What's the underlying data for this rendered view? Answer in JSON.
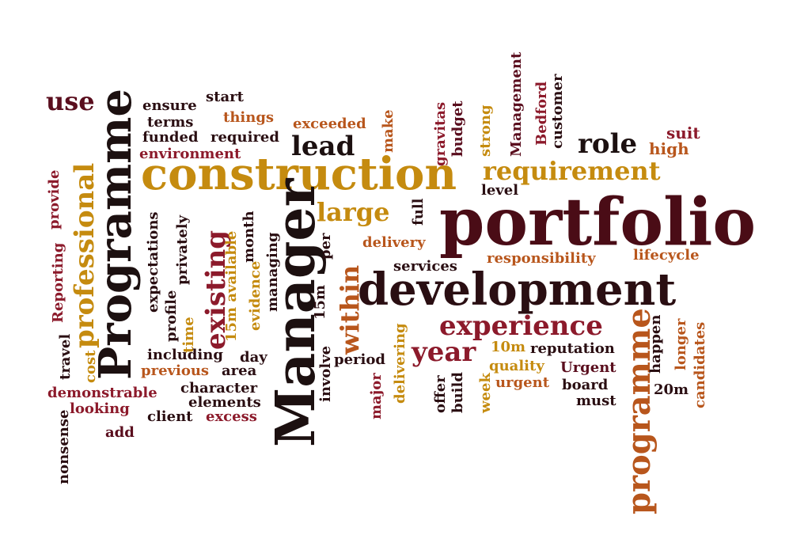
{
  "palette": {
    "dark_maroon": "#3d0a10",
    "maroon": "#5a0e1e",
    "red": "#8c1a2b",
    "orange": "#b8561c",
    "gold": "#c58b0f",
    "black": "#1c1010"
  },
  "words": [
    {
      "text": "portfolio",
      "color": "#4a0c16",
      "vertical": false
    },
    {
      "text": "construction",
      "color": "#c58b0f",
      "vertical": false
    },
    {
      "text": "development",
      "color": "#2a0e12",
      "vertical": false
    },
    {
      "text": "Manager",
      "color": "#1c1010",
      "vertical": true
    },
    {
      "text": "Programme",
      "color": "#1c1010",
      "vertical": true
    },
    {
      "text": "programme",
      "color": "#b8561c",
      "vertical": true
    },
    {
      "text": "professional",
      "color": "#c58b0f",
      "vertical": true
    },
    {
      "text": "existing",
      "color": "#8c1a2b",
      "vertical": true
    },
    {
      "text": "within",
      "color": "#b8561c",
      "vertical": true
    },
    {
      "text": "experience",
      "color": "#8c1a2b",
      "vertical": false
    },
    {
      "text": "requirement",
      "color": "#c58b0f",
      "vertical": false
    },
    {
      "text": "large",
      "color": "#c58b0f",
      "vertical": false
    },
    {
      "text": "year",
      "color": "#8c1a2b",
      "vertical": false
    },
    {
      "text": "role",
      "color": "#1c1010",
      "vertical": false
    },
    {
      "text": "lead",
      "color": "#1c1010",
      "vertical": false
    },
    {
      "text": "use",
      "color": "#5a0e1e",
      "vertical": false
    },
    {
      "text": "high",
      "color": "#b8561c",
      "vertical": false
    },
    {
      "text": "suit",
      "color": "#8c1a2b",
      "vertical": false
    },
    {
      "text": "ensure",
      "color": "#2a0e12",
      "vertical": false
    },
    {
      "text": "start",
      "color": "#2a0e12",
      "vertical": false
    },
    {
      "text": "terms",
      "color": "#2a0e12",
      "vertical": false
    },
    {
      "text": "things",
      "color": "#b8561c",
      "vertical": false
    },
    {
      "text": "funded",
      "color": "#2a0e12",
      "vertical": false
    },
    {
      "text": "required",
      "color": "#2a0e12",
      "vertical": false
    },
    {
      "text": "environment",
      "color": "#8c1a2b",
      "vertical": false
    },
    {
      "text": "exceeded",
      "color": "#b8561c",
      "vertical": false
    },
    {
      "text": "make",
      "color": "#b8561c",
      "vertical": true
    },
    {
      "text": "gravitas",
      "color": "#8c1a2b",
      "vertical": true
    },
    {
      "text": "budget",
      "color": "#5a0e1e",
      "vertical": true
    },
    {
      "text": "strong",
      "color": "#c58b0f",
      "vertical": true
    },
    {
      "text": "Management",
      "color": "#5a0e1e",
      "vertical": true
    },
    {
      "text": "Bedford",
      "color": "#8c1a2b",
      "vertical": true
    },
    {
      "text": "customer",
      "color": "#2a0e12",
      "vertical": true
    },
    {
      "text": "level",
      "color": "#2a0e12",
      "vertical": false
    },
    {
      "text": "full",
      "color": "#2a0e12",
      "vertical": true
    },
    {
      "text": "delivery",
      "color": "#b8561c",
      "vertical": false
    },
    {
      "text": "services",
      "color": "#2a0e12",
      "vertical": false
    },
    {
      "text": "responsibility",
      "color": "#b8561c",
      "vertical": false
    },
    {
      "text": "lifecycle",
      "color": "#b8561c",
      "vertical": false
    },
    {
      "text": "provide",
      "color": "#8c1a2b",
      "vertical": true
    },
    {
      "text": "Reporting",
      "color": "#8c1a2b",
      "vertical": true
    },
    {
      "text": "expectations",
      "color": "#2a0e12",
      "vertical": true
    },
    {
      "text": "privately",
      "color": "#2a0e12",
      "vertical": true
    },
    {
      "text": "profile",
      "color": "#2a0e12",
      "vertical": true
    },
    {
      "text": "time",
      "color": "#c58b0f",
      "vertical": true
    },
    {
      "text": "15m available",
      "color": "#c58b0f",
      "vertical": true
    },
    {
      "text": "month",
      "color": "#2a0e12",
      "vertical": true
    },
    {
      "text": "evidence",
      "color": "#c58b0f",
      "vertical": true
    },
    {
      "text": "managing",
      "color": "#2a0e12",
      "vertical": true
    },
    {
      "text": "per",
      "color": "#2a0e12",
      "vertical": true
    },
    {
      "text": "15m",
      "color": "#2a0e12",
      "vertical": true
    },
    {
      "text": "involve",
      "color": "#2a0e12",
      "vertical": true
    },
    {
      "text": "travel",
      "color": "#2a0e12",
      "vertical": true
    },
    {
      "text": "cost",
      "color": "#c58b0f",
      "vertical": true
    },
    {
      "text": "including",
      "color": "#2a0e12",
      "vertical": false
    },
    {
      "text": "day",
      "color": "#2a0e12",
      "vertical": false
    },
    {
      "text": "previous",
      "color": "#b8561c",
      "vertical": false
    },
    {
      "text": "area",
      "color": "#2a0e12",
      "vertical": false
    },
    {
      "text": "period",
      "color": "#2a0e12",
      "vertical": false
    },
    {
      "text": "delivering",
      "color": "#c58b0f",
      "vertical": true
    },
    {
      "text": "10m",
      "color": "#c58b0f",
      "vertical": false
    },
    {
      "text": "reputation",
      "color": "#2a0e12",
      "vertical": false
    },
    {
      "text": "quality",
      "color": "#c58b0f",
      "vertical": false
    },
    {
      "text": "Urgent",
      "color": "#5a0e1e",
      "vertical": false
    },
    {
      "text": "urgent",
      "color": "#b8561c",
      "vertical": false
    },
    {
      "text": "board",
      "color": "#2a0e12",
      "vertical": false
    },
    {
      "text": "happen",
      "color": "#2a0e12",
      "vertical": true
    },
    {
      "text": "longer",
      "color": "#b8561c",
      "vertical": true
    },
    {
      "text": "candidates",
      "color": "#b8561c",
      "vertical": true
    },
    {
      "text": "20m",
      "color": "#2a0e12",
      "vertical": false
    },
    {
      "text": "must",
      "color": "#2a0e12",
      "vertical": false
    },
    {
      "text": "character",
      "color": "#2a0e12",
      "vertical": false
    },
    {
      "text": "demonstrable",
      "color": "#8c1a2b",
      "vertical": false
    },
    {
      "text": "elements",
      "color": "#2a0e12",
      "vertical": false
    },
    {
      "text": "looking",
      "color": "#8c1a2b",
      "vertical": false
    },
    {
      "text": "client",
      "color": "#2a0e12",
      "vertical": false
    },
    {
      "text": "excess",
      "color": "#8c1a2b",
      "vertical": false
    },
    {
      "text": "add",
      "color": "#5a0e1e",
      "vertical": false
    },
    {
      "text": "nonsense",
      "color": "#2a0e12",
      "vertical": true
    },
    {
      "text": "major",
      "color": "#8c1a2b",
      "vertical": true
    },
    {
      "text": "offer",
      "color": "#2a0e12",
      "vertical": true
    },
    {
      "text": "build",
      "color": "#2a0e12",
      "vertical": true
    },
    {
      "text": "week",
      "color": "#c58b0f",
      "vertical": true
    }
  ]
}
